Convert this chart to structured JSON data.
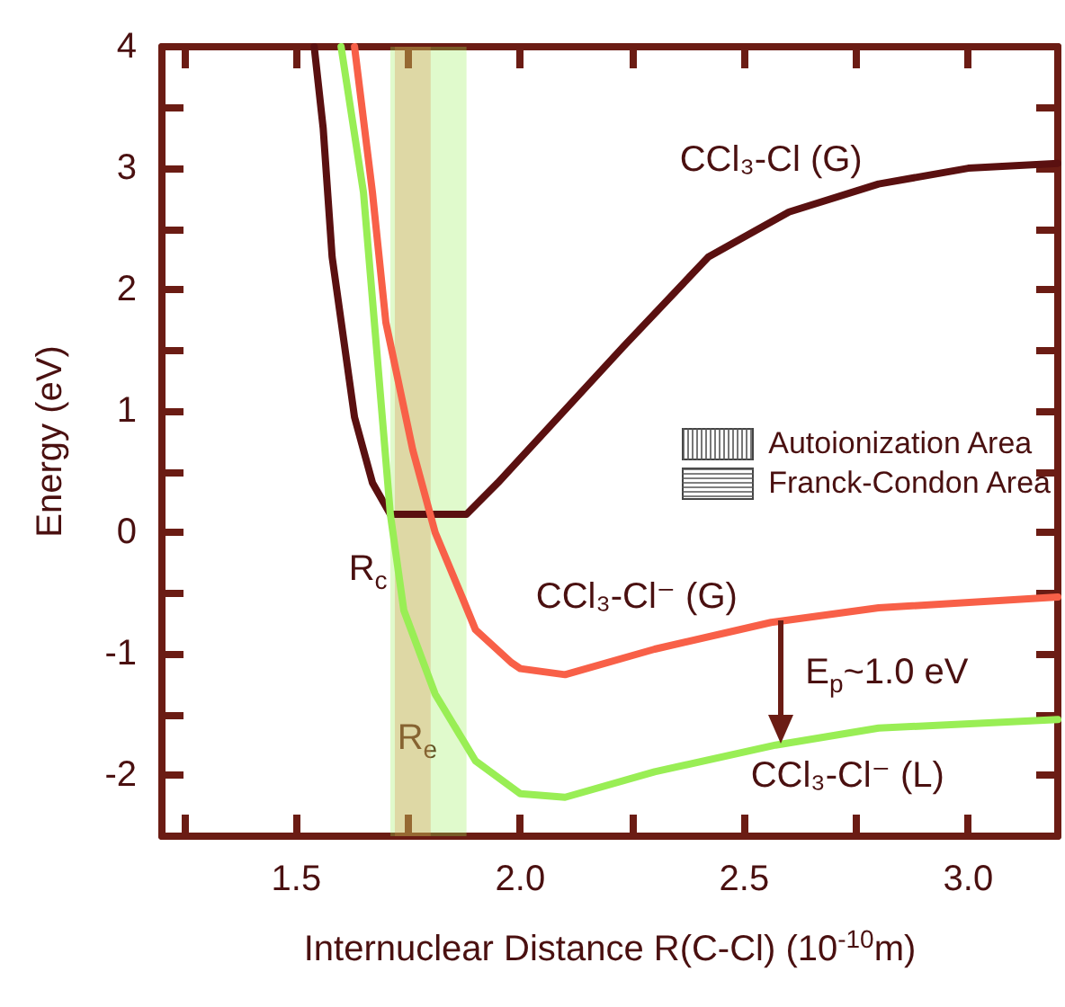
{
  "chart_data": {
    "type": "line",
    "xlabel": "Internuclear Distance R(C-Cl) (10$^{-10}$m)",
    "ylabel": "Energy (eV)",
    "xlim": [
      1.2,
      3.2
    ],
    "ylim": [
      -2.5,
      4
    ],
    "xticks": [
      {
        "value": 1.25,
        "label": null
      },
      1.5,
      {
        "value": 1.75,
        "label": null
      },
      {
        "value": 2,
        "label": "2.0"
      },
      {
        "value": 2.25,
        "label": null
      },
      2.5,
      {
        "value": 2.75,
        "label": null
      },
      {
        "value": 3,
        "label": "3.0"
      }
    ],
    "yticks": [
      -2,
      {
        "value": -1.5,
        "label": null
      },
      -1,
      {
        "value": -0.5,
        "label": null
      },
      0,
      {
        "value": 0.5,
        "label": null
      },
      1,
      {
        "value": 1.5,
        "label": null
      },
      2,
      {
        "value": 2.5,
        "label": null
      },
      3,
      {
        "value": 3.5,
        "label": null
      },
      4
    ],
    "series": [
      {
        "name": "CCl₃-Cl (G)",
        "color": "#5a1010",
        "x": [
          1.54,
          1.56,
          1.58,
          1.63,
          1.67,
          1.71,
          1.88,
          1.95,
          2.23,
          2.42,
          2.6,
          2.8,
          3.0,
          3.2
        ],
        "values": [
          4,
          3.33,
          2.27,
          0.95,
          0.41,
          0.15,
          0.15,
          0.41,
          1.53,
          2.27,
          2.64,
          2.87,
          3.0,
          3.04
        ]
      },
      {
        "name": "CCl₃-Cl⁻ (G)",
        "color": "#f86048",
        "x": [
          1.63,
          1.67,
          1.7,
          1.76,
          1.81,
          1.87,
          1.9,
          1.98,
          2.0,
          2.1,
          2.3,
          2.56,
          2.8,
          3.2
        ],
        "values": [
          4,
          2.8,
          1.73,
          0.68,
          0,
          -0.53,
          -0.8,
          -1.07,
          -1.12,
          -1.17,
          -0.96,
          -0.74,
          -0.62,
          -0.53
        ]
      },
      {
        "name": "CCl₃-Cl⁻ (L)",
        "color": "#99ee55",
        "x": [
          1.6,
          1.65,
          1.68,
          1.71,
          1.74,
          1.81,
          1.9,
          2.0,
          2.1,
          2.3,
          2.57,
          2.8,
          3.2
        ],
        "values": [
          4,
          2.8,
          1.48,
          0.15,
          -0.64,
          -1.33,
          -1.88,
          -2.15,
          -2.18,
          -1.97,
          -1.75,
          -1.61,
          -1.54
        ]
      }
    ],
    "bands": [
      {
        "axis": "x",
        "from": 1.72,
        "to": 1.8,
        "color": "#f86048"
      },
      {
        "axis": "x",
        "from": 1.71,
        "to": 1.88,
        "color": "#99ee55"
      }
    ],
    "annotations": [
      "R$_{c}$",
      "R$_{e}$",
      "E$_{p}$~1.0 eV",
      "Autoionization Area",
      "Franck-Condon Area"
    ],
    "marker": "none",
    "line_style": "solid"
  }
}
